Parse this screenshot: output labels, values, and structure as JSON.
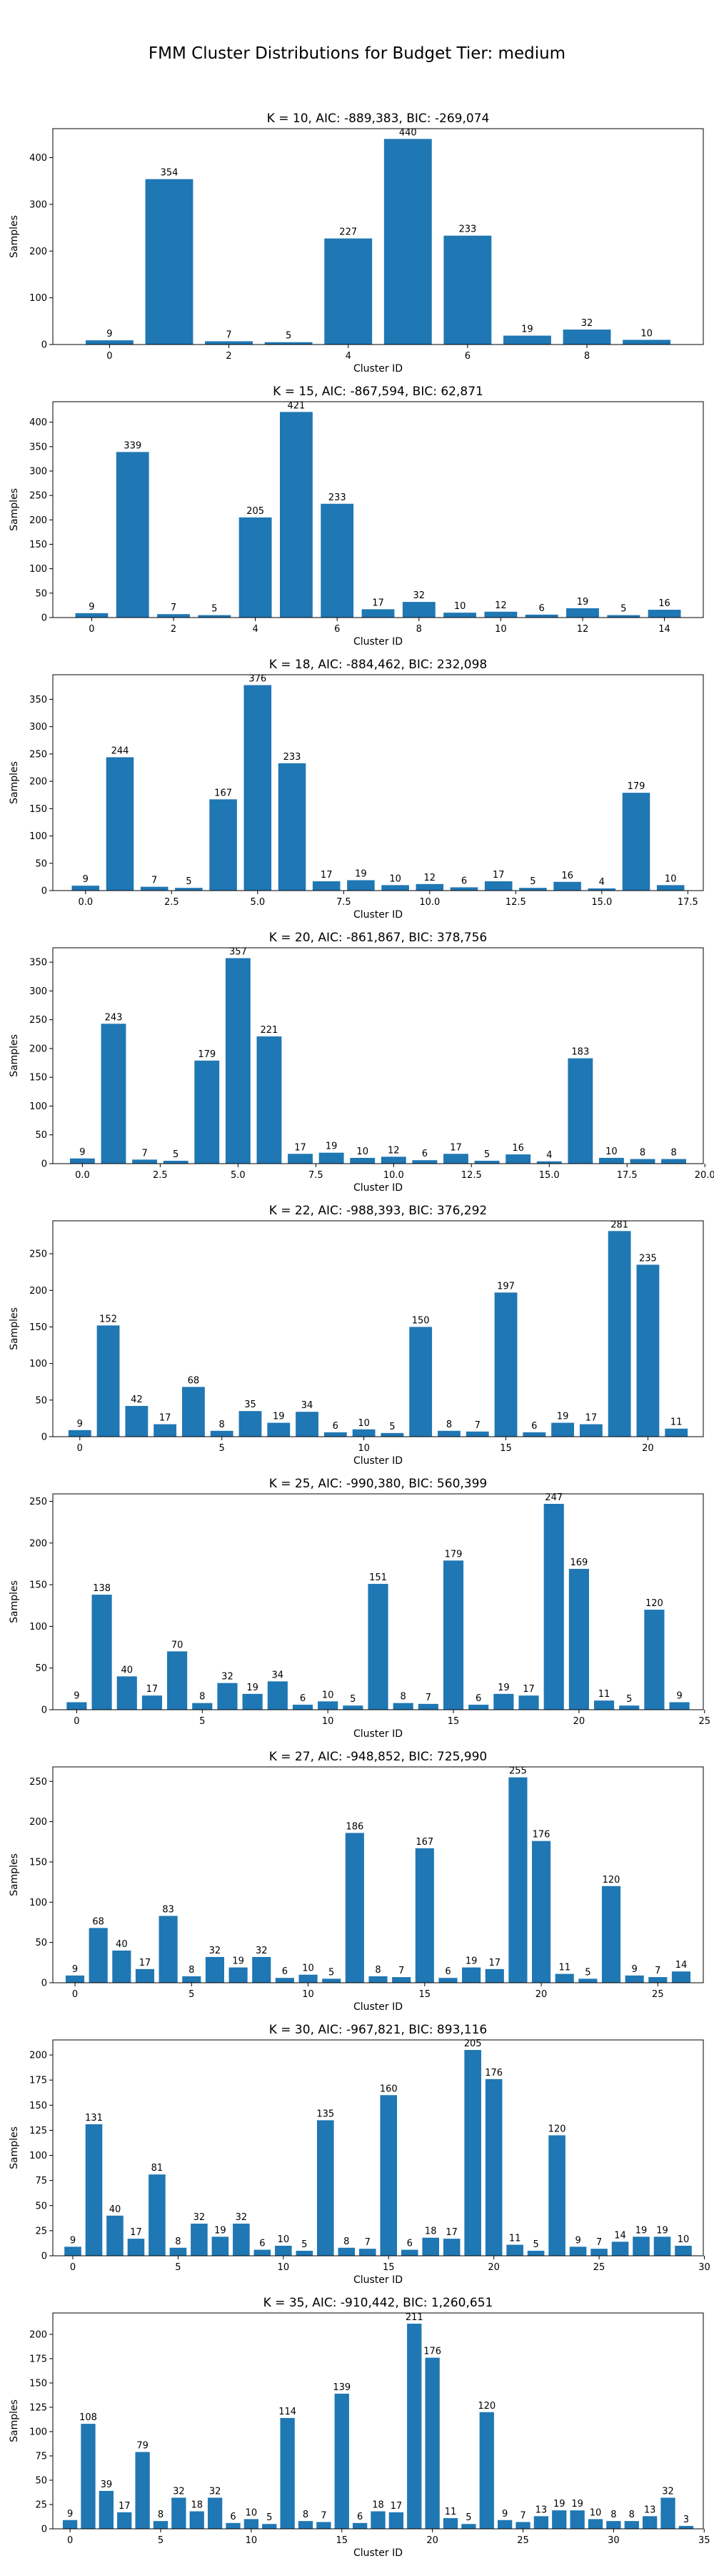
{
  "suptitle": "FMM Cluster Distributions for Budget Tier: medium",
  "colors": {
    "bar": "#1f77b4",
    "axis": "#000000",
    "text": "#000000"
  },
  "chart_data": [
    {
      "type": "bar",
      "title": "K = 10, AIC: -889,383, BIC: -269,074",
      "xlabel": "Cluster ID",
      "ylabel": "Samples",
      "x": [
        0,
        1,
        2,
        3,
        4,
        5,
        6,
        7,
        8,
        9
      ],
      "values": [
        9,
        354,
        7,
        5,
        227,
        440,
        233,
        19,
        32,
        10
      ],
      "xlim": [
        -0.95,
        9.95
      ],
      "ylim": [
        0,
        462
      ],
      "xticks": [
        0,
        2,
        4,
        6,
        8
      ],
      "xtick_labels": [
        "0",
        "2",
        "4",
        "6",
        "8"
      ],
      "yticks": [
        0,
        100,
        200,
        300,
        400
      ],
      "ytick_labels": [
        "0",
        "100",
        "200",
        "300",
        "400"
      ],
      "grid": false,
      "legend": "none"
    },
    {
      "type": "bar",
      "title": "K = 15, AIC: -867,594, BIC: 62,871",
      "xlabel": "Cluster ID",
      "ylabel": "Samples",
      "x": [
        0,
        1,
        2,
        3,
        4,
        5,
        6,
        7,
        8,
        9,
        10,
        11,
        12,
        13,
        14
      ],
      "values": [
        9,
        339,
        7,
        5,
        205,
        421,
        233,
        17,
        32,
        10,
        12,
        6,
        19,
        5,
        16
      ],
      "xlim": [
        -0.95,
        14.95
      ],
      "ylim": [
        0,
        442
      ],
      "xticks": [
        0,
        2,
        4,
        6,
        8,
        10,
        12,
        14
      ],
      "xtick_labels": [
        "0",
        "2",
        "4",
        "6",
        "8",
        "10",
        "12",
        "14"
      ],
      "yticks": [
        0,
        50,
        100,
        150,
        200,
        250,
        300,
        350,
        400
      ],
      "ytick_labels": [
        "0",
        "50",
        "100",
        "150",
        "200",
        "250",
        "300",
        "350",
        "400"
      ],
      "grid": false,
      "legend": "none"
    },
    {
      "type": "bar",
      "title": "K = 18, AIC: -884,462, BIC: 232,098",
      "xlabel": "Cluster ID",
      "ylabel": "Samples",
      "x": [
        0,
        1,
        2,
        3,
        4,
        5,
        6,
        7,
        8,
        9,
        10,
        11,
        12,
        13,
        14,
        15,
        16,
        17
      ],
      "values": [
        9,
        244,
        7,
        5,
        167,
        376,
        233,
        17,
        19,
        10,
        12,
        6,
        17,
        5,
        16,
        4,
        179,
        10
      ],
      "xlim": [
        -0.95,
        17.95
      ],
      "ylim": [
        0,
        395
      ],
      "xticks": [
        0,
        2.5,
        5,
        7.5,
        10,
        12.5,
        15,
        17.5
      ],
      "xtick_labels": [
        "0.0",
        "2.5",
        "5.0",
        "7.5",
        "10.0",
        "12.5",
        "15.0",
        "17.5"
      ],
      "yticks": [
        0,
        50,
        100,
        150,
        200,
        250,
        300,
        350
      ],
      "ytick_labels": [
        "0",
        "50",
        "100",
        "150",
        "200",
        "250",
        "300",
        "350"
      ],
      "grid": false,
      "legend": "none"
    },
    {
      "type": "bar",
      "title": "K = 20, AIC: -861,867, BIC: 378,756",
      "xlabel": "Cluster ID",
      "ylabel": "Samples",
      "x": [
        0,
        1,
        2,
        3,
        4,
        5,
        6,
        7,
        8,
        9,
        10,
        11,
        12,
        13,
        14,
        15,
        16,
        17,
        18,
        19
      ],
      "values": [
        9,
        243,
        7,
        5,
        179,
        357,
        221,
        17,
        19,
        10,
        12,
        6,
        17,
        5,
        16,
        4,
        183,
        10,
        8,
        8
      ],
      "xlim": [
        -0.95,
        19.95
      ],
      "ylim": [
        0,
        375
      ],
      "xticks": [
        0,
        2.5,
        5,
        7.5,
        10,
        12.5,
        15,
        17.5,
        20
      ],
      "xtick_labels": [
        "0.0",
        "2.5",
        "5.0",
        "7.5",
        "10.0",
        "12.5",
        "15.0",
        "17.5",
        "20.0"
      ],
      "yticks": [
        0,
        50,
        100,
        150,
        200,
        250,
        300,
        350
      ],
      "ytick_labels": [
        "0",
        "50",
        "100",
        "150",
        "200",
        "250",
        "300",
        "350"
      ],
      "grid": false,
      "legend": "none"
    },
    {
      "type": "bar",
      "title": "K = 22, AIC: -988,393, BIC: 376,292",
      "xlabel": "Cluster ID",
      "ylabel": "Samples",
      "x": [
        0,
        1,
        2,
        3,
        4,
        5,
        6,
        7,
        8,
        9,
        10,
        11,
        12,
        13,
        14,
        15,
        16,
        17,
        18,
        19,
        20,
        21
      ],
      "values": [
        9,
        152,
        42,
        17,
        68,
        8,
        35,
        19,
        34,
        6,
        10,
        5,
        150,
        8,
        7,
        197,
        6,
        19,
        17,
        281,
        235,
        11
      ],
      "xlim": [
        -0.95,
        21.95
      ],
      "ylim": [
        0,
        295
      ],
      "xticks": [
        0,
        5,
        10,
        15,
        20
      ],
      "xtick_labels": [
        "0",
        "5",
        "10",
        "15",
        "20"
      ],
      "yticks": [
        0,
        50,
        100,
        150,
        200,
        250
      ],
      "ytick_labels": [
        "0",
        "50",
        "100",
        "150",
        "200",
        "250"
      ],
      "grid": false,
      "legend": "none"
    },
    {
      "type": "bar",
      "title": "K = 25, AIC: -990,380, BIC: 560,399",
      "xlabel": "Cluster ID",
      "ylabel": "Samples",
      "x": [
        0,
        1,
        2,
        3,
        4,
        5,
        6,
        7,
        8,
        9,
        10,
        11,
        12,
        13,
        14,
        15,
        16,
        17,
        18,
        19,
        20,
        21,
        22,
        23,
        24
      ],
      "values": [
        9,
        138,
        40,
        17,
        70,
        8,
        32,
        19,
        34,
        6,
        10,
        5,
        151,
        8,
        7,
        179,
        6,
        19,
        17,
        247,
        169,
        11,
        5,
        120,
        9
      ],
      "xlim": [
        -0.95,
        24.95
      ],
      "ylim": [
        0,
        259
      ],
      "xticks": [
        0,
        5,
        10,
        15,
        20,
        25
      ],
      "xtick_labels": [
        "0",
        "5",
        "10",
        "15",
        "20",
        "25"
      ],
      "yticks": [
        0,
        50,
        100,
        150,
        200,
        250
      ],
      "ytick_labels": [
        "0",
        "50",
        "100",
        "150",
        "200",
        "250"
      ],
      "grid": false,
      "legend": "none"
    },
    {
      "type": "bar",
      "title": "K = 27, AIC: -948,852, BIC: 725,990",
      "xlabel": "Cluster ID",
      "ylabel": "Samples",
      "x": [
        0,
        1,
        2,
        3,
        4,
        5,
        6,
        7,
        8,
        9,
        10,
        11,
        12,
        13,
        14,
        15,
        16,
        17,
        18,
        19,
        20,
        21,
        22,
        23,
        24,
        25,
        26
      ],
      "values": [
        9,
        68,
        40,
        17,
        83,
        8,
        32,
        19,
        32,
        6,
        10,
        5,
        186,
        8,
        7,
        167,
        6,
        19,
        17,
        255,
        176,
        11,
        5,
        120,
        9,
        7,
        14
      ],
      "xlim": [
        -0.95,
        26.95
      ],
      "ylim": [
        0,
        268
      ],
      "xticks": [
        0,
        5,
        10,
        15,
        20,
        25
      ],
      "xtick_labels": [
        "0",
        "5",
        "10",
        "15",
        "20",
        "25"
      ],
      "yticks": [
        0,
        50,
        100,
        150,
        200,
        250
      ],
      "ytick_labels": [
        "0",
        "50",
        "100",
        "150",
        "200",
        "250"
      ],
      "grid": false,
      "legend": "none"
    },
    {
      "type": "bar",
      "title": "K = 30, AIC: -967,821, BIC: 893,116",
      "xlabel": "Cluster ID",
      "ylabel": "Samples",
      "x": [
        0,
        1,
        2,
        3,
        4,
        5,
        6,
        7,
        8,
        9,
        10,
        11,
        12,
        13,
        14,
        15,
        16,
        17,
        18,
        19,
        20,
        21,
        22,
        23,
        24,
        25,
        26,
        27,
        28,
        29
      ],
      "values": [
        9,
        131,
        40,
        17,
        81,
        8,
        32,
        19,
        32,
        6,
        10,
        5,
        135,
        8,
        7,
        160,
        6,
        18,
        17,
        205,
        176,
        11,
        5,
        120,
        9,
        7,
        14,
        19,
        19,
        10
      ],
      "xlim": [
        -0.95,
        29.95
      ],
      "ylim": [
        0,
        215
      ],
      "xticks": [
        0,
        5,
        10,
        15,
        20,
        25,
        30
      ],
      "xtick_labels": [
        "0",
        "5",
        "10",
        "15",
        "20",
        "25",
        "30"
      ],
      "yticks": [
        0,
        25,
        50,
        75,
        100,
        125,
        150,
        175,
        200
      ],
      "ytick_labels": [
        "0",
        "25",
        "50",
        "75",
        "100",
        "125",
        "150",
        "175",
        "200"
      ],
      "grid": false,
      "legend": "none"
    },
    {
      "type": "bar",
      "title": "K = 35, AIC: -910,442, BIC: 1,260,651",
      "xlabel": "Cluster ID",
      "ylabel": "Samples",
      "x": [
        0,
        1,
        2,
        3,
        4,
        5,
        6,
        7,
        8,
        9,
        10,
        11,
        12,
        13,
        14,
        15,
        16,
        17,
        18,
        19,
        20,
        21,
        22,
        23,
        24,
        25,
        26,
        27,
        28,
        29,
        30,
        31,
        32,
        33,
        34
      ],
      "values": [
        9,
        108,
        39,
        17,
        79,
        8,
        32,
        18,
        32,
        6,
        10,
        5,
        114,
        8,
        7,
        139,
        6,
        18,
        17,
        211,
        176,
        11,
        5,
        120,
        9,
        7,
        13,
        19,
        19,
        10,
        8,
        8,
        13,
        32,
        3
      ],
      "xlim": [
        -0.95,
        34.95
      ],
      "ylim": [
        0,
        222
      ],
      "xticks": [
        0,
        5,
        10,
        15,
        20,
        25,
        30,
        35
      ],
      "xtick_labels": [
        "0",
        "5",
        "10",
        "15",
        "20",
        "25",
        "30",
        "35"
      ],
      "yticks": [
        0,
        25,
        50,
        75,
        100,
        125,
        150,
        175,
        200
      ],
      "ytick_labels": [
        "0",
        "25",
        "50",
        "75",
        "100",
        "125",
        "150",
        "175",
        "200"
      ],
      "grid": false,
      "legend": "none"
    }
  ]
}
